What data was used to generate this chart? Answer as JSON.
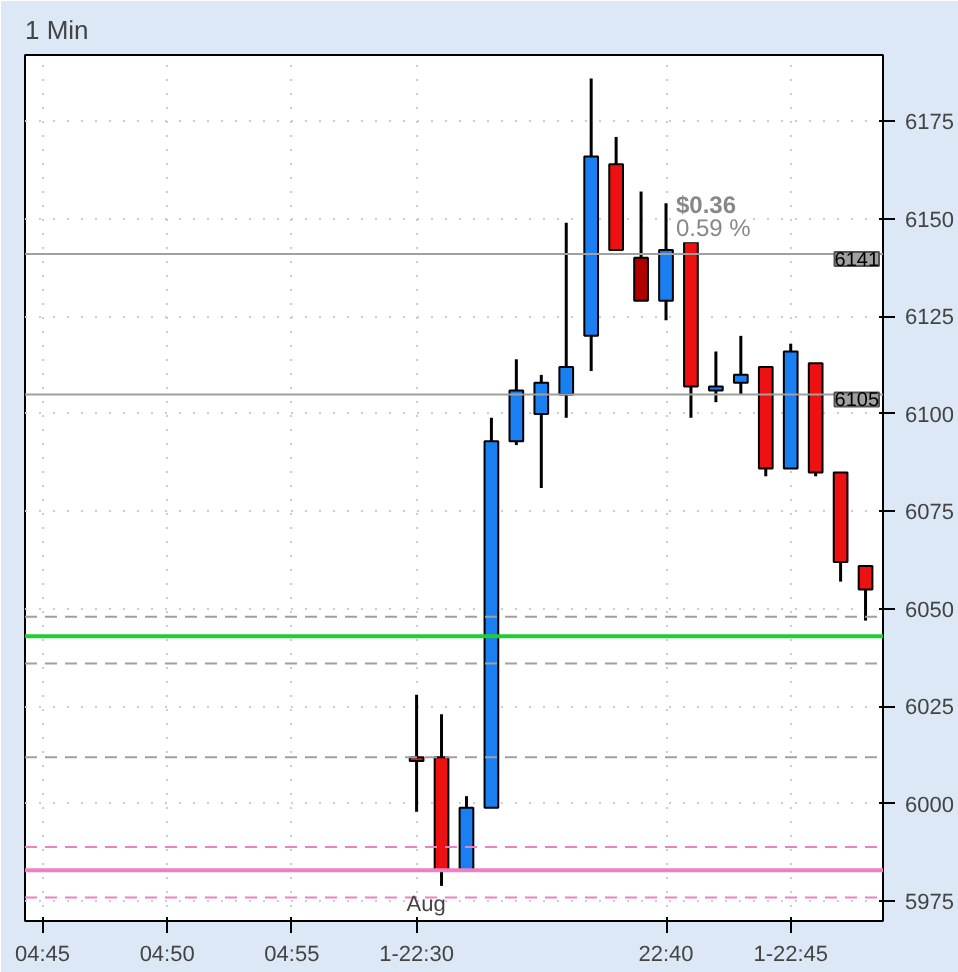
{
  "chart_data": {
    "type": "candlestick",
    "title": "1 Min",
    "categories": [
      "04:45",
      null,
      null,
      null,
      null,
      "04:50",
      null,
      null,
      null,
      null,
      "04:55",
      null,
      null,
      null,
      null,
      "1-22:30",
      null,
      null,
      null,
      null,
      null,
      null,
      null,
      null,
      null,
      "22:40",
      null,
      null,
      null,
      null,
      "1-22:45",
      null,
      null,
      null
    ],
    "ohlc": [
      null,
      null,
      null,
      null,
      null,
      null,
      null,
      null,
      null,
      null,
      null,
      null,
      null,
      null,
      null,
      [
        6012,
        6028,
        5998,
        6011
      ],
      [
        6012,
        6023,
        5979,
        5983
      ],
      [
        5983,
        6002,
        5983,
        5999
      ],
      [
        5999,
        6099,
        5999,
        6093
      ],
      [
        6093,
        6114,
        6092,
        6106
      ],
      [
        6100,
        6110,
        6081,
        6108
      ],
      [
        6105,
        6149,
        6099,
        6112
      ],
      [
        6120,
        6186,
        6111,
        6166
      ],
      [
        6164,
        6171,
        6142,
        6142
      ],
      [
        6140,
        6157,
        6129,
        6129
      ],
      [
        6129,
        6154,
        6124,
        6142
      ],
      [
        6144,
        6145,
        6099,
        6107
      ],
      [
        6106,
        6116,
        6103,
        6107
      ],
      [
        6108,
        6120,
        6105,
        6110
      ],
      [
        6112,
        6112,
        6084,
        6086
      ],
      [
        6086,
        6118,
        6086,
        6116
      ],
      [
        6113,
        6113,
        6084,
        6085
      ],
      [
        6085,
        6085,
        6057,
        6062
      ],
      [
        6061,
        6061,
        6047,
        6055
      ]
    ],
    "colors": [
      null,
      null,
      null,
      null,
      null,
      null,
      null,
      null,
      null,
      null,
      null,
      null,
      null,
      null,
      null,
      "#ee1111",
      "#ee1111",
      "#1a7ff0",
      "#1a7ff0",
      "#1a7ff0",
      "#1a7ff0",
      "#1a7ff0",
      "#1a7ff0",
      "#ee1111",
      "#b00000",
      "#1a7ff0",
      "#ee1111",
      "#1a7ff0",
      "#1a7ff0",
      "#ee1111",
      "#1a7ff0",
      "#ee1111",
      "#ee1111",
      "#ee1111"
    ],
    "ylim": [
      5970,
      6192
    ],
    "yticks": [
      5975,
      6000,
      6025,
      6050,
      6075,
      6100,
      6125,
      6150,
      6175
    ],
    "grid": true,
    "ref_lines": [
      {
        "axis": "y",
        "value": 6141,
        "label": "6141",
        "color": "#a0a0a0",
        "line_style": "solid"
      },
      {
        "axis": "y",
        "value": 6105,
        "label": "6105",
        "color": "#a0a0a0",
        "line_style": "solid"
      },
      {
        "axis": "y",
        "value": 6048,
        "label": null,
        "color": "#a0a0a0",
        "line_style": "dashed"
      },
      {
        "axis": "y",
        "value": 6043,
        "label": null,
        "color": "#22cc33",
        "line_style": "solid"
      },
      {
        "axis": "y",
        "value": 6036,
        "label": null,
        "color": "#a0a0a0",
        "line_style": "dashed"
      },
      {
        "axis": "y",
        "value": 6012,
        "label": null,
        "color": "#a0a0a0",
        "line_style": "dashed"
      },
      {
        "axis": "y",
        "value": 5989,
        "label": null,
        "color": "#f080c0",
        "line_style": "dashed"
      },
      {
        "axis": "y",
        "value": 5983,
        "label": null,
        "color": "#f080c0",
        "line_style": "solid"
      },
      {
        "axis": "y",
        "value": 5976,
        "label": null,
        "color": "#f080c0",
        "line_style": "dashed"
      }
    ],
    "annotations": [
      {
        "text": "$0.36",
        "x": "22:40",
        "y": 6150
      },
      {
        "text": "0.59 %",
        "x": "22:40",
        "y": 6144
      },
      "Aug"
    ]
  }
}
